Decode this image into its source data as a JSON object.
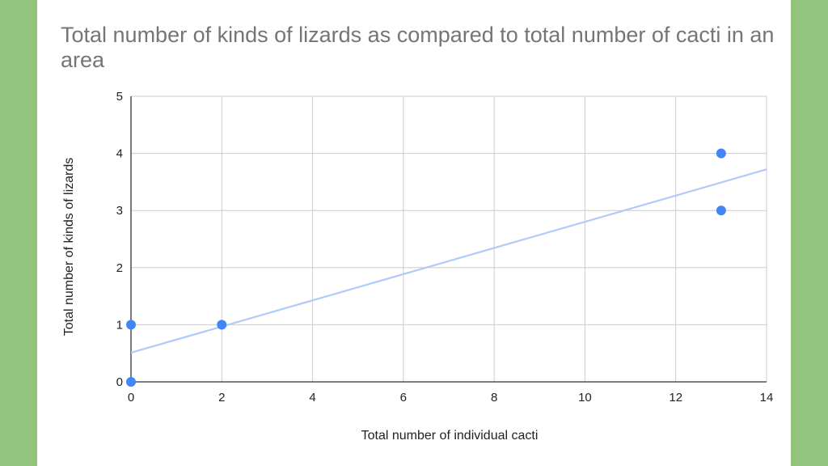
{
  "chart_data": {
    "type": "scatter",
    "title": "Total number of kinds of lizards as compared to total number of cacti in an area",
    "xlabel": "Total number of individual cacti",
    "ylabel": "Total number of kinds of lizards",
    "xlim": [
      0,
      14
    ],
    "ylim": [
      0,
      5
    ],
    "xticks": [
      0,
      2,
      4,
      6,
      8,
      10,
      12,
      14
    ],
    "yticks": [
      0,
      1,
      2,
      3,
      4,
      5
    ],
    "grid": true,
    "legend": "none",
    "series": [
      {
        "color": "#4285f4",
        "points": [
          {
            "x": 0,
            "y": 0
          },
          {
            "x": 0,
            "y": 1
          },
          {
            "x": 2,
            "y": 1
          },
          {
            "x": 13,
            "y": 3
          },
          {
            "x": 13,
            "y": 4
          }
        ]
      }
    ],
    "trendline": {
      "type": "linear",
      "color": "#aecbfa",
      "x_start": 0,
      "y_start": 0.51,
      "x_end": 14,
      "y_end": 3.72
    }
  },
  "colors": {
    "background": "#93c47d",
    "panel": "#ffffff",
    "title": "#757575",
    "grid": "#cccccc",
    "axis": "#333333"
  }
}
